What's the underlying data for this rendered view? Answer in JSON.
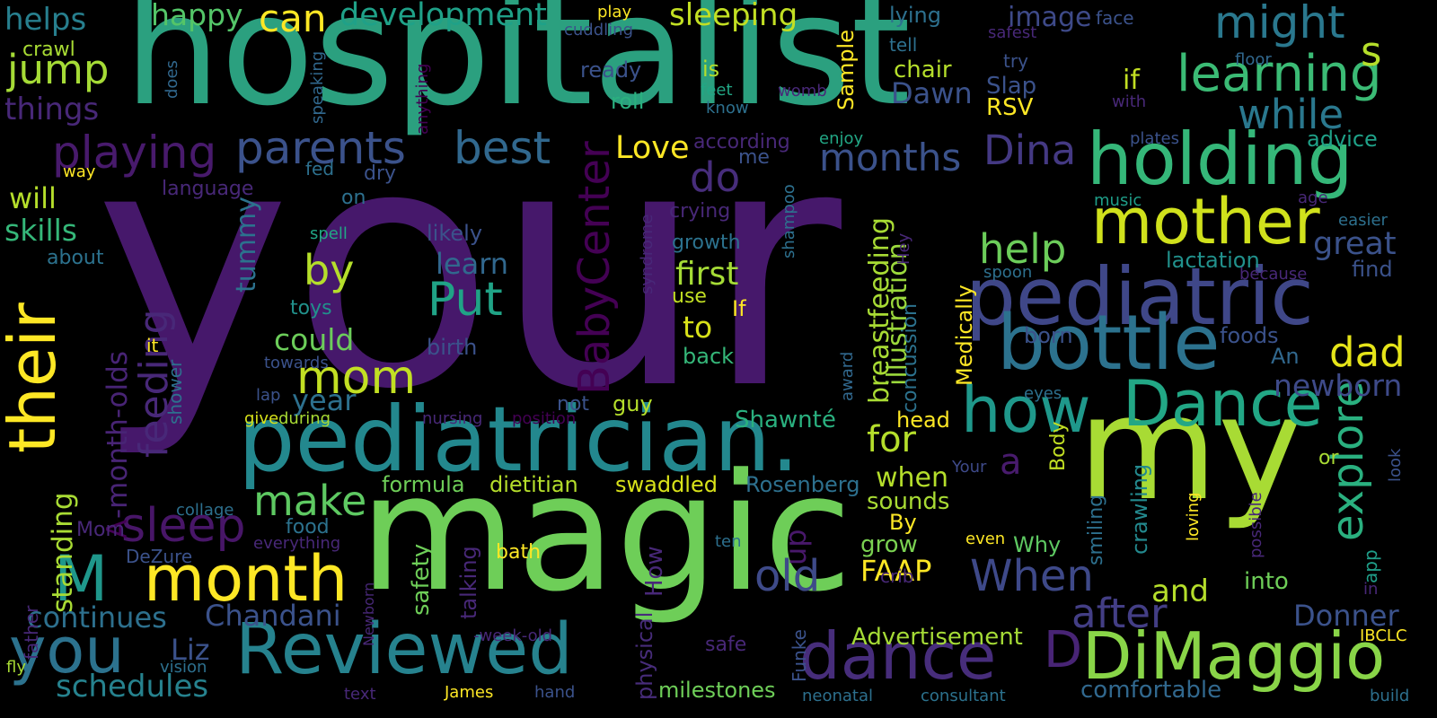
{
  "palette": [
    "#440154",
    "#482878",
    "#3e4a89",
    "#31688e",
    "#26828e",
    "#1f9e89",
    "#35b779",
    "#6ece58",
    "#b5de2b",
    "#fde725"
  ],
  "words": [
    {
      "t": "your",
      "c": "#46186b"
    },
    {
      "t": "hospitalist",
      "c": "#2ba07f"
    },
    {
      "t": "magic",
      "c": "#6ece58"
    },
    {
      "t": "my",
      "c": "#a8db34"
    },
    {
      "t": "pediatrician.",
      "c": "#23888e"
    },
    {
      "t": "pediatric",
      "c": "#3f4788"
    },
    {
      "t": "their",
      "c": "#fde725"
    },
    {
      "t": "holding",
      "c": "#35b779"
    },
    {
      "t": "bottle",
      "c": "#2c728e"
    },
    {
      "t": "Reviewed",
      "c": "#26828e"
    },
    {
      "t": "DiMaggio",
      "c": "#89d548"
    },
    {
      "t": "dance",
      "c": "#472d7b"
    },
    {
      "t": "month",
      "c": "#fde725"
    },
    {
      "t": "mother",
      "c": "#d0e11c"
    },
    {
      "t": "how",
      "c": "#1f988b"
    },
    {
      "t": "Dance",
      "c": "#22a785"
    },
    {
      "t": "you",
      "c": "#2c728e"
    },
    {
      "t": "learning",
      "c": "#3bbb75"
    },
    {
      "t": "might",
      "c": "#2a788e"
    },
    {
      "t": "parents",
      "c": "#3b528b"
    },
    {
      "t": "playing",
      "c": "#481a6c"
    },
    {
      "t": "best",
      "c": "#31688e"
    },
    {
      "t": "BabyCenter",
      "c": "#440154"
    },
    {
      "t": "sleep",
      "c": "#481668"
    },
    {
      "t": "M",
      "c": "#1f978b"
    },
    {
      "t": "Put",
      "c": "#20a386"
    },
    {
      "t": "mom",
      "c": "#c2df23"
    },
    {
      "t": "jump",
      "c": "#a5db36"
    },
    {
      "t": "can",
      "c": "#fde725"
    },
    {
      "t": "do",
      "c": "#472d7b"
    },
    {
      "t": "by",
      "c": "#b5de2b"
    },
    {
      "t": "explore",
      "c": "#2ab07f"
    },
    {
      "t": "while",
      "c": "#2a788e"
    },
    {
      "t": "When",
      "c": "#3e4989"
    },
    {
      "t": "after",
      "c": "#433e85"
    },
    {
      "t": "months",
      "c": "#3b528b"
    },
    {
      "t": "Dina",
      "c": "#443983"
    },
    {
      "t": "feeding",
      "c": "#482878"
    },
    {
      "t": "make",
      "c": "#5ec962"
    },
    {
      "t": "old",
      "c": "#3e4a89"
    },
    {
      "t": "D",
      "c": "#482475"
    },
    {
      "t": "development",
      "c": "#1fa188"
    },
    {
      "t": "sleeping",
      "c": "#c2df23"
    },
    {
      "t": "happy",
      "c": "#54c568"
    },
    {
      "t": "helps",
      "c": "#277f8e"
    },
    {
      "t": "things",
      "c": "#482878"
    },
    {
      "t": "help",
      "c": "#6ccd5a"
    },
    {
      "t": "dad",
      "c": "#e5e419"
    },
    {
      "t": "great",
      "c": "#3b528b"
    },
    {
      "t": "-month-olds",
      "c": "#482475"
    },
    {
      "t": "A",
      "c": "#440154"
    },
    {
      "t": "standing",
      "c": "#a8db34"
    },
    {
      "t": "skills",
      "c": "#35b779"
    },
    {
      "t": "will",
      "c": "#b5de2b"
    },
    {
      "t": "continues",
      "c": "#2d708e"
    },
    {
      "t": "schedules",
      "c": "#26828e"
    },
    {
      "t": "Chandani",
      "c": "#3b528b"
    },
    {
      "t": "for",
      "c": "#b5de2b"
    },
    {
      "t": "first",
      "c": "#a5db36"
    },
    {
      "t": "Love",
      "c": "#fde725"
    },
    {
      "t": "newborn",
      "c": "#3e4a89"
    },
    {
      "t": "Donner",
      "c": "#3b528b"
    },
    {
      "t": "and",
      "c": "#b5de2b"
    },
    {
      "t": "breastfeeding",
      "c": "#a8db34"
    },
    {
      "t": "illustration",
      "c": "#9bd93c"
    },
    {
      "t": "could",
      "c": "#6ccd5a"
    },
    {
      "t": "a",
      "c": "#481b6d"
    },
    {
      "t": "up",
      "c": "#48186a"
    },
    {
      "t": "tummy",
      "c": "#2c728e"
    },
    {
      "t": "learn",
      "c": "#31688e"
    },
    {
      "t": "likely",
      "c": "#3b528b"
    },
    {
      "t": "year",
      "c": "#2d708e"
    },
    {
      "t": "to",
      "c": "#d8e219"
    },
    {
      "t": "Dawn",
      "c": "#3b528b"
    },
    {
      "t": "FAAP",
      "c": "#fde725"
    },
    {
      "t": "Liz",
      "c": "#3b528b"
    },
    {
      "t": "Advertisement",
      "c": "#a5db36"
    },
    {
      "t": "milestones",
      "c": "#6ece58"
    },
    {
      "t": "comfortable",
      "c": "#31688e"
    },
    {
      "t": "physical",
      "c": "#472c7a"
    },
    {
      "t": "How",
      "c": "#482878"
    },
    {
      "t": "safety",
      "c": "#6ece58"
    },
    {
      "t": "talking",
      "c": "#482878"
    },
    {
      "t": "Shawnté",
      "c": "#2ab07f"
    },
    {
      "t": "formula",
      "c": "#6ece58"
    },
    {
      "t": "dietitian",
      "c": "#b5de2b"
    },
    {
      "t": "swaddled",
      "c": "#d8e219"
    },
    {
      "t": "Rosenberg",
      "c": "#2d708e"
    },
    {
      "t": "when",
      "c": "#b5de2b"
    },
    {
      "t": "sounds",
      "c": "#a8db34"
    },
    {
      "t": "grow",
      "c": "#7ad151"
    },
    {
      "t": "By",
      "c": "#fde725"
    },
    {
      "t": "Why",
      "c": "#5ec962"
    },
    {
      "t": "crawling",
      "c": "#23898e"
    },
    {
      "t": "into",
      "c": "#6ece58"
    },
    {
      "t": "smiling",
      "c": "#2d708e"
    },
    {
      "t": "head",
      "c": "#fde725"
    },
    {
      "t": "concussion",
      "c": "#2c728e"
    },
    {
      "t": "Medically",
      "c": "#fde725"
    },
    {
      "t": "Body",
      "c": "#c2df23"
    },
    {
      "t": "born",
      "c": "#3b528b"
    },
    {
      "t": "foods",
      "c": "#3b528b"
    },
    {
      "t": "An",
      "c": "#31688e"
    },
    {
      "t": "lactation",
      "c": "#21918c"
    },
    {
      "t": "find",
      "c": "#3b528b"
    },
    {
      "t": "advice",
      "c": "#1fa188"
    },
    {
      "t": "chair",
      "c": "#b5de2b"
    },
    {
      "t": "image",
      "c": "#3e4a89"
    },
    {
      "t": "Slap",
      "c": "#3b528b"
    },
    {
      "t": "RSV",
      "c": "#fde725"
    },
    {
      "t": "if",
      "c": "#c2df23"
    },
    {
      "t": "s",
      "c": "#b5de2b"
    },
    {
      "t": "lying",
      "c": "#2d708e"
    },
    {
      "t": "face",
      "c": "#3b528b"
    },
    {
      "t": "tell",
      "c": "#2d708e"
    },
    {
      "t": "try",
      "c": "#3b528b"
    },
    {
      "t": "safest",
      "c": "#482878"
    },
    {
      "t": "floor",
      "c": "#31688e"
    },
    {
      "t": "with",
      "c": "#482878"
    },
    {
      "t": "plates",
      "c": "#3b528b"
    },
    {
      "t": "enjoy",
      "c": "#22a785"
    },
    {
      "t": "music",
      "c": "#1f9e89"
    },
    {
      "t": "age",
      "c": "#482878"
    },
    {
      "t": "easier",
      "c": "#2d708e"
    },
    {
      "t": "because",
      "c": "#482878"
    },
    {
      "t": "spoon",
      "c": "#2d708e"
    },
    {
      "t": "according",
      "c": "#482878"
    },
    {
      "t": "me",
      "c": "#3b528b"
    },
    {
      "t": "crying",
      "c": "#482878"
    },
    {
      "t": "growth",
      "c": "#2c728e"
    },
    {
      "t": "use",
      "c": "#c2df23"
    },
    {
      "t": "If",
      "c": "#fde725"
    },
    {
      "t": "back",
      "c": "#35b779"
    },
    {
      "t": "ready",
      "c": "#3b528b"
    },
    {
      "t": "roll",
      "c": "#2ab07f"
    },
    {
      "t": "is",
      "c": "#b5de2b"
    },
    {
      "t": "feet",
      "c": "#22a785"
    },
    {
      "t": "know",
      "c": "#2d708e"
    },
    {
      "t": "Sample",
      "c": "#fde725"
    },
    {
      "t": "womb",
      "c": "#482878"
    },
    {
      "t": "anything",
      "c": "#440154"
    },
    {
      "t": "speaking",
      "c": "#31688e"
    },
    {
      "t": "does",
      "c": "#31688e"
    },
    {
      "t": "play",
      "c": "#fde725"
    },
    {
      "t": "cuddling",
      "c": "#3b528b"
    },
    {
      "t": "crawl",
      "c": "#a8db34"
    },
    {
      "t": "way",
      "c": "#fde725"
    },
    {
      "t": "fed",
      "c": "#2d708e"
    },
    {
      "t": "dry",
      "c": "#3b528b"
    },
    {
      "t": "language",
      "c": "#482878"
    },
    {
      "t": "on",
      "c": "#2d708e"
    },
    {
      "t": "spell",
      "c": "#22a785"
    },
    {
      "t": "about",
      "c": "#2c728e"
    },
    {
      "t": "toys",
      "c": "#21918c"
    },
    {
      "t": "it",
      "c": "#fde725"
    },
    {
      "t": "birth",
      "c": "#3b528b"
    },
    {
      "t": "towards",
      "c": "#3b528b"
    },
    {
      "t": "lap",
      "c": "#3b528b"
    },
    {
      "t": "shower",
      "c": "#2d708e"
    },
    {
      "t": "give",
      "c": "#d8e219"
    },
    {
      "t": "during",
      "c": "#a8db34"
    },
    {
      "t": "nursing",
      "c": "#482878"
    },
    {
      "t": "position",
      "c": "#440154"
    },
    {
      "t": "not",
      "c": "#3b528b"
    },
    {
      "t": "guy",
      "c": "#b5de2b"
    },
    {
      "t": "syndrome",
      "c": "#482878"
    },
    {
      "t": "shampoo",
      "c": "#2d708e"
    },
    {
      "t": "Hey",
      "c": "#482878"
    },
    {
      "t": "award",
      "c": "#31688e"
    },
    {
      "t": "eyes",
      "c": "#2d708e"
    },
    {
      "t": "Your",
      "c": "#3e4a89"
    },
    {
      "t": "or",
      "c": "#a8db34"
    },
    {
      "t": "look",
      "c": "#3b528b"
    },
    {
      "t": "loving",
      "c": "#fde725"
    },
    {
      "t": "possible",
      "c": "#482878"
    },
    {
      "t": "even",
      "c": "#fde725"
    },
    {
      "t": "ten",
      "c": "#2d708e"
    },
    {
      "t": "app",
      "c": "#1f9e89"
    },
    {
      "t": "in",
      "c": "#482878"
    },
    {
      "t": "IBCLC",
      "c": "#fde725"
    },
    {
      "t": "build",
      "c": "#2d708e"
    },
    {
      "t": "consultant",
      "c": "#2c728e"
    },
    {
      "t": "neonatal",
      "c": "#2d708e"
    },
    {
      "t": "crib",
      "c": "#482878"
    },
    {
      "t": "Funke",
      "c": "#3b528b"
    },
    {
      "t": "safe",
      "c": "#482878"
    },
    {
      "t": "bath",
      "c": "#fde725"
    },
    {
      "t": "-week-old",
      "c": "#482878"
    },
    {
      "t": "James",
      "c": "#fde725"
    },
    {
      "t": "hand",
      "c": "#3b528b"
    },
    {
      "t": "text",
      "c": "#482878"
    },
    {
      "t": "Newborn",
      "c": "#482878"
    },
    {
      "t": "vision",
      "c": "#2d708e"
    },
    {
      "t": "fly",
      "c": "#a8db34"
    },
    {
      "t": "father",
      "c": "#482878"
    },
    {
      "t": "Mom",
      "c": "#482878"
    },
    {
      "t": "DeZure",
      "c": "#3b528b"
    },
    {
      "t": "collage",
      "c": "#2d708e"
    },
    {
      "t": "everything",
      "c": "#482878"
    },
    {
      "t": "food",
      "c": "#2c728e"
    }
  ]
}
